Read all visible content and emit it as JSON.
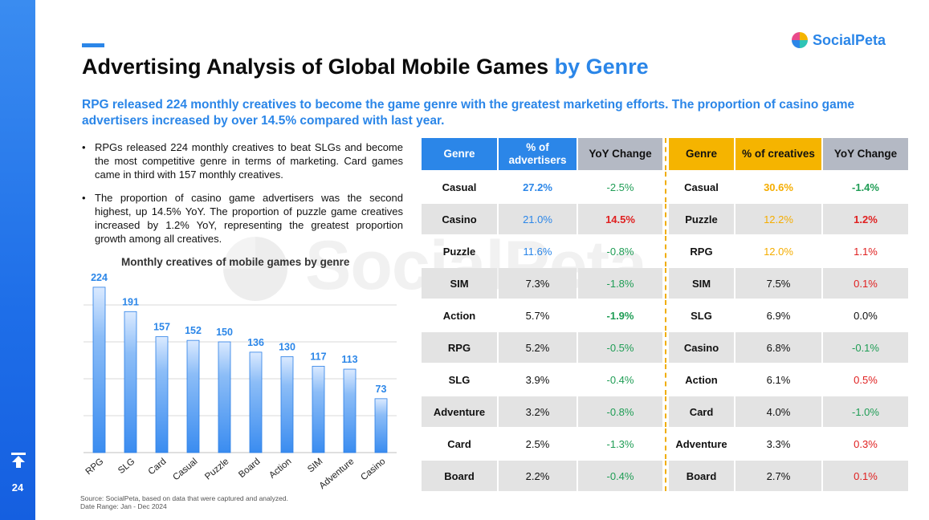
{
  "page": {
    "title_main": "Advertising Analysis of Global Mobile Games ",
    "title_highlight": "by Genre",
    "logo_text": "SocialPeta",
    "watermark_text": "SocialPeta",
    "subtitle": "RPG released 224 monthly creatives to become the game genre with the greatest marketing efforts.  The proportion of casino game advertisers increased by over 14.5% compared with last year.",
    "page_number": "24",
    "source_line1": "Source: SocialPeta, based on data that were captured and analyzed.",
    "source_line2": "Date Range: Jan - Dec 2024",
    "bullets": [
      "RPGs released 224 monthly creatives to beat SLGs and become the most competitive genre in terms of marketing. Card games came in third with 157 monthly creatives.",
      "The proportion of casino game advertisers was the second highest, up 14.5% YoY. The proportion of puzzle game creatives increased by 1.2% YoY, representing the greatest proportion growth among all creatives."
    ],
    "colors": {
      "accent_blue": "#2b86e8",
      "accent_yellow": "#f5b400",
      "header_gray": "#b4b9c4",
      "positive": "#e02020",
      "negative": "#1f9d55"
    }
  },
  "chart_data": {
    "type": "bar",
    "title": "Monthly creatives of mobile games by genre",
    "categories": [
      "RPG",
      "SLG",
      "Card",
      "Casual",
      "Puzzle",
      "Board",
      "Action",
      "SIM",
      "Adventure",
      "Casino"
    ],
    "values": [
      224,
      191,
      157,
      152,
      150,
      136,
      130,
      117,
      113,
      73
    ],
    "ylim": [
      0,
      250
    ],
    "grid": true,
    "data_labels": true
  },
  "table": {
    "left_headers": [
      "Genre",
      "% of advertisers",
      "YoY Change"
    ],
    "right_headers": [
      "Genre",
      "% of creatives",
      "YoY Change"
    ],
    "left_rows": [
      {
        "genre": "Casual",
        "pct": "27.2%",
        "yoy": "-2.5%"
      },
      {
        "genre": "Casino",
        "pct": "21.0%",
        "yoy": "14.5%"
      },
      {
        "genre": "Puzzle",
        "pct": "11.6%",
        "yoy": "-0.8%"
      },
      {
        "genre": "SIM",
        "pct": "7.3%",
        "yoy": "-1.8%"
      },
      {
        "genre": "Action",
        "pct": "5.7%",
        "yoy": "-1.9%"
      },
      {
        "genre": "RPG",
        "pct": "5.2%",
        "yoy": "-0.5%"
      },
      {
        "genre": "SLG",
        "pct": "3.9%",
        "yoy": "-0.4%"
      },
      {
        "genre": "Adventure",
        "pct": "3.2%",
        "yoy": "-0.8%"
      },
      {
        "genre": "Card",
        "pct": "2.5%",
        "yoy": "-1.3%"
      },
      {
        "genre": "Board",
        "pct": "2.2%",
        "yoy": "-0.4%"
      }
    ],
    "right_rows": [
      {
        "genre": "Casual",
        "pct": "30.6%",
        "yoy": "-1.4%"
      },
      {
        "genre": "Puzzle",
        "pct": "12.2%",
        "yoy": "1.2%"
      },
      {
        "genre": "RPG",
        "pct": "12.0%",
        "yoy": "1.1%"
      },
      {
        "genre": "SIM",
        "pct": "7.5%",
        "yoy": "0.1%"
      },
      {
        "genre": "SLG",
        "pct": "6.9%",
        "yoy": "0.0%"
      },
      {
        "genre": "Casino",
        "pct": "6.8%",
        "yoy": "-0.1%"
      },
      {
        "genre": "Action",
        "pct": "6.1%",
        "yoy": "0.5%"
      },
      {
        "genre": "Card",
        "pct": "4.0%",
        "yoy": "-1.0%"
      },
      {
        "genre": "Adventure",
        "pct": "3.3%",
        "yoy": "0.3%"
      },
      {
        "genre": "Board",
        "pct": "2.7%",
        "yoy": "0.1%"
      }
    ]
  }
}
